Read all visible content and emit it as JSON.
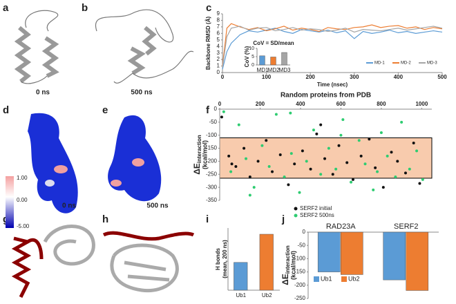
{
  "panels": [
    "a",
    "b",
    "c",
    "d",
    "e",
    "f",
    "g",
    "h",
    "i",
    "j"
  ],
  "time_labels": [
    "0 ns",
    "500 ns",
    "0 ns",
    "500 ns"
  ],
  "colorbar": {
    "ticks": [
      "1.00",
      "0.00",
      "-5.00"
    ]
  },
  "chart_data": [
    {
      "type": "line",
      "ylabel": "Backbone RMSD (Å)",
      "xlabel": "Time (nsec)",
      "x": [
        0,
        10,
        20,
        40,
        60,
        80,
        100,
        120,
        140,
        160,
        180,
        200,
        220,
        240,
        260,
        280,
        300,
        320,
        340,
        360,
        380,
        400,
        420,
        440,
        460,
        480,
        500
      ],
      "series": [
        {
          "name": "MD-1",
          "color": "#5b9bd5",
          "values": [
            0.5,
            3.2,
            4.5,
            5.8,
            6.4,
            6.2,
            6.5,
            6.8,
            6.3,
            6.0,
            6.6,
            6.4,
            6.2,
            6.5,
            6.1,
            6.4,
            5.2,
            6.3,
            6.0,
            6.2,
            6.5,
            6.1,
            6.3,
            6.0,
            6.2,
            6.4,
            6.2
          ]
        },
        {
          "name": "MD-2",
          "color": "#ed7d31",
          "values": [
            1.0,
            6.8,
            7.5,
            7.0,
            6.6,
            6.9,
            6.4,
            6.7,
            7.1,
            6.5,
            6.8,
            6.6,
            6.3,
            6.9,
            6.7,
            6.6,
            6.9,
            7.0,
            7.3,
            6.9,
            7.1,
            7.2,
            6.8,
            7.0,
            6.6,
            6.9,
            6.7
          ]
        },
        {
          "name": "MD-3",
          "color": "#a5a5a5",
          "values": [
            0.8,
            5.5,
            6.8,
            7.1,
            6.5,
            6.8,
            6.9,
            6.4,
            6.6,
            6.9,
            6.5,
            6.7,
            6.6,
            6.3,
            6.5,
            6.8,
            6.2,
            6.6,
            6.5,
            6.4,
            6.6,
            6.8,
            6.5,
            6.7,
            6.9,
            7.1,
            6.8
          ]
        }
      ],
      "xlim": [
        0,
        500
      ],
      "xticks": [
        0,
        100,
        200,
        300,
        400,
        500
      ],
      "ylim": [
        0,
        9
      ],
      "yticks": [
        0,
        1,
        2,
        3,
        4,
        5,
        6,
        7,
        8,
        9
      ],
      "legend": "bottom-right"
    },
    {
      "type": "bar",
      "title": "CoV = SD/mean",
      "ylabel": "CoV (%)",
      "categories": [
        "MD1",
        "MD2",
        "MD3"
      ],
      "values": [
        5.5,
        4.8,
        7.5
      ],
      "colors": [
        "#5b9bd5",
        "#ed7d31",
        "#a5a5a5"
      ],
      "ylim": [
        0,
        10
      ],
      "yticks": [
        0,
        5,
        10
      ]
    },
    {
      "type": "scatter",
      "title": "Random proteins from PDB",
      "ylabel": "ΔE",
      "ylabel_sub": "interaction",
      "ylabel_unit": "(kcal/mol)",
      "xaxis": "top",
      "xlim": [
        0,
        1050
      ],
      "xticks": [
        0,
        200,
        400,
        600,
        800,
        1000
      ],
      "ylim": [
        -350,
        0
      ],
      "yticks": [
        0,
        -50,
        -100,
        -150,
        -200,
        -250,
        -300,
        -350
      ],
      "band": [
        -265,
        -110
      ],
      "band_color": "#f8cbad",
      "legend": "bottom",
      "series": [
        {
          "name": "SERF2 initial",
          "color": "#111111",
          "x": [
            10,
            45,
            80,
            120,
            150,
            190,
            230,
            260,
            300,
            340,
            370,
            410,
            450,
            480,
            520,
            560,
            590,
            630,
            660,
            700,
            740,
            770,
            810,
            850,
            880,
            920,
            960,
            990,
            60,
            500
          ],
          "values": [
            -30,
            -180,
            -220,
            -150,
            -260,
            -200,
            -120,
            -240,
            -175,
            -290,
            -210,
            -160,
            -230,
            -95,
            -190,
            -250,
            -140,
            -205,
            -270,
            -180,
            -115,
            -225,
            -300,
            -165,
            -200,
            -245,
            -130,
            -285,
            -210,
            -60
          ]
        },
        {
          "name": "SERF2 500ns",
          "color": "#2ecc71",
          "x": [
            20,
            55,
            95,
            130,
            170,
            210,
            245,
            280,
            320,
            355,
            395,
            430,
            465,
            500,
            540,
            575,
            610,
            650,
            690,
            720,
            760,
            800,
            830,
            870,
            900,
            940,
            975,
            1005,
            150,
            600,
            350,
            780
          ],
          "values": [
            -10,
            -240,
            -60,
            -190,
            -300,
            -140,
            -220,
            -20,
            -260,
            -170,
            -320,
            -200,
            -80,
            -250,
            -150,
            -230,
            -40,
            -280,
            -120,
            -210,
            -310,
            -90,
            -180,
            -260,
            -50,
            -230,
            -160,
            -270,
            -330,
            -100,
            -15,
            -240
          ]
        }
      ]
    },
    {
      "type": "bar",
      "ylabel": "H bonds",
      "ylabel2": "(mean, 200 ns)",
      "categories": [
        "Ub1",
        "Ub2"
      ],
      "values": [
        6.7,
        13.5
      ],
      "colors": [
        "#5b9bd5",
        "#ed7d31"
      ],
      "ylim": [
        0,
        15
      ]
    },
    {
      "type": "bar",
      "ylabel": "ΔE",
      "ylabel_sub": "interaction",
      "ylabel_unit": "(kcal/mol)",
      "xaxis": "top",
      "categories": [
        "RAD23A",
        "SERF2"
      ],
      "series": [
        {
          "name": "Ub1",
          "color": "#5b9bd5",
          "values": [
            -150,
            -180
          ]
        },
        {
          "name": "Ub2",
          "color": "#ed7d31",
          "values": [
            -160,
            -220
          ]
        }
      ],
      "ylim": [
        -250,
        0
      ],
      "yticks": [
        0,
        -50,
        -100,
        -150,
        -200,
        -250
      ],
      "legend": "bottom-left"
    }
  ]
}
